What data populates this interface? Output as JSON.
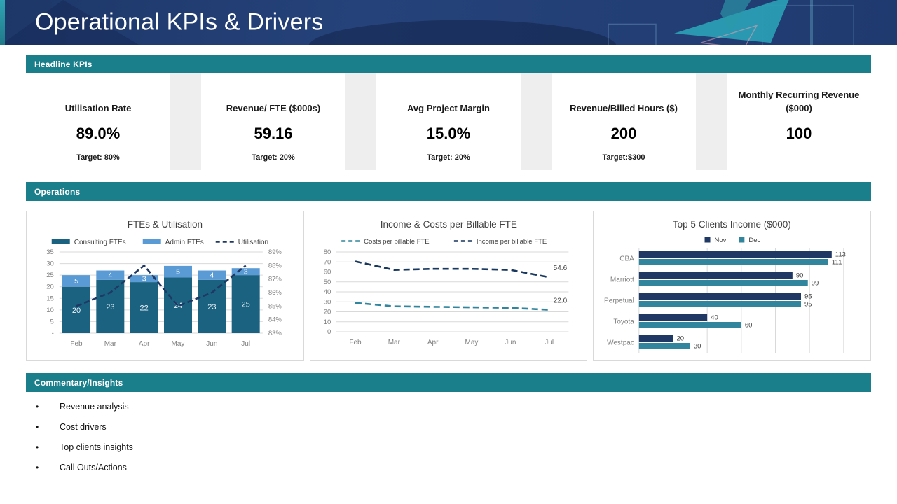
{
  "page": {
    "title": "Operational KPIs & Drivers"
  },
  "sections": {
    "headline": "Headline KPIs",
    "operations": "Operations",
    "commentary": "Commentary/Insights"
  },
  "kpis": [
    {
      "title": "Utilisation Rate",
      "value": "89.0%",
      "target": "Target: 80%"
    },
    {
      "title": "Revenue/ FTE ($000s)",
      "value": "59.16",
      "target": "Target: 20%"
    },
    {
      "title": "Avg Project Margin",
      "value": "15.0%",
      "target": "Target: 20%"
    },
    {
      "title": "Revenue/Billed Hours ($)",
      "value": "200",
      "target": "Target:$300"
    },
    {
      "title": "Monthly Recurring Revenue ($000)",
      "value": "100",
      "target": ""
    }
  ],
  "commentary_bullets": [
    "Revenue analysis",
    "Cost drivers",
    "Top clients insights",
    "Call Outs/Actions"
  ],
  "colors": {
    "header_navy": "#223e74",
    "section_teal": "#1b7e8b",
    "accent_teal": "#2aa0b5",
    "panel_gray": "#eeeeee",
    "card_border": "#d9d9d9",
    "consulting_bar": "#1a6280",
    "admin_bar": "#5b9bd5",
    "utilisation_line": "#1f3864",
    "costs_line": "#31859c",
    "income_line": "#17375e",
    "nov_bar": "#1f3864",
    "dec_bar": "#31859c",
    "axis_label": "#808080",
    "chart_title": "#404040"
  },
  "chart_data": [
    {
      "type": "bar",
      "subtype": "stacked-column-with-line",
      "title": "FTEs & Utilisation",
      "categories": [
        "Feb",
        "Mar",
        "Apr",
        "May",
        "Jun",
        "Jul"
      ],
      "series": [
        {
          "name": "Consulting FTEs",
          "kind": "bar",
          "color": "#1a6280",
          "values": [
            20,
            23,
            22,
            24,
            23,
            25
          ]
        },
        {
          "name": "Admin FTEs",
          "kind": "bar",
          "color": "#5b9bd5",
          "values": [
            5,
            4,
            3,
            5,
            4,
            3
          ]
        },
        {
          "name": "Utilisation",
          "kind": "line",
          "dashed": true,
          "color": "#1f3864",
          "axis": "right",
          "values": [
            85,
            86,
            88,
            85,
            86,
            88
          ]
        }
      ],
      "left_axis": {
        "min": 0,
        "max": 35,
        "step": 5,
        "zero_label": "-"
      },
      "right_axis": {
        "min": 83,
        "max": 89,
        "step": 1,
        "suffix": "%"
      },
      "grid": true,
      "legend_position": "top"
    },
    {
      "type": "line",
      "title": "Income & Costs per Billable FTE",
      "categories": [
        "Feb",
        "Mar",
        "Apr",
        "May",
        "Jun",
        "Jul"
      ],
      "series": [
        {
          "name": "Costs per billable FTE",
          "dashed": true,
          "color": "#31859c",
          "values": [
            29,
            25.5,
            25,
            24.5,
            24,
            22
          ],
          "end_label": "22.0"
        },
        {
          "name": "Income per billable FTE",
          "dashed": true,
          "color": "#17375e",
          "values": [
            70.5,
            62,
            63,
            63,
            62,
            54.6
          ],
          "end_label": "54.6"
        }
      ],
      "y_axis": {
        "min": 0,
        "max": 80,
        "step": 10
      },
      "grid": true,
      "legend_position": "top"
    },
    {
      "type": "bar",
      "orientation": "horizontal",
      "title": "Top 5 Clients Income ($000)",
      "categories": [
        "CBA",
        "Marriott",
        "Perpetual",
        "Toyota",
        "Westpac"
      ],
      "series": [
        {
          "name": "Nov",
          "color": "#1f3864",
          "values": [
            113,
            90,
            95,
            40,
            20
          ]
        },
        {
          "name": "Dec",
          "color": "#31859c",
          "values": [
            111,
            99,
            95,
            60,
            30
          ]
        }
      ],
      "x_axis": {
        "min": 0,
        "max": 120,
        "step": 20
      },
      "grid": true,
      "data_labels": true,
      "legend_position": "top"
    }
  ]
}
